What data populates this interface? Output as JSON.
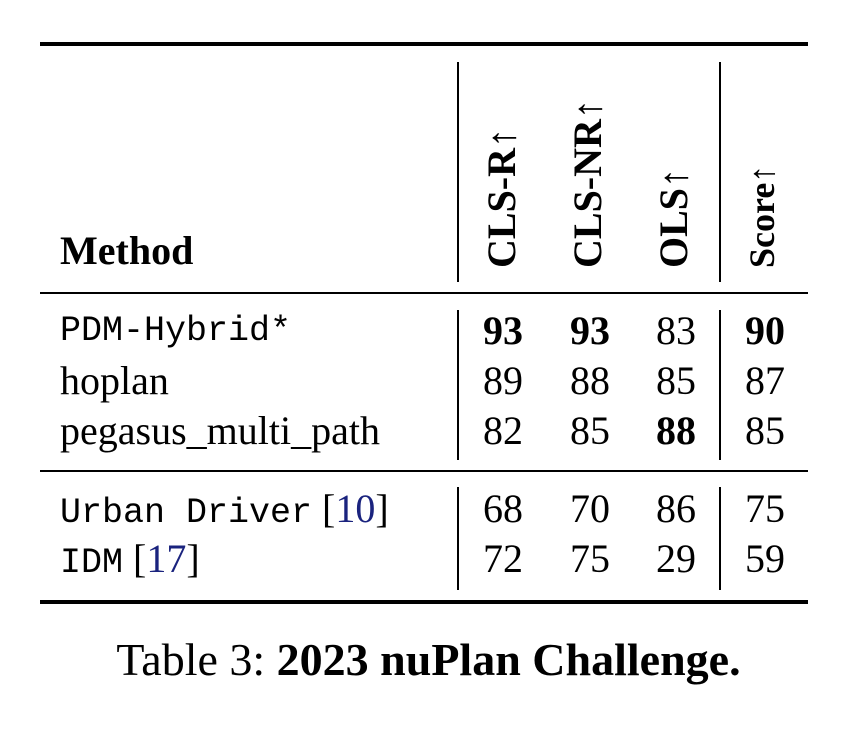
{
  "table": {
    "headers": {
      "method": "Method",
      "cls_r": "CLS-R",
      "cls_nr": "CLS-NR",
      "ols": "OLS",
      "score": "Score",
      "arrow": "↑"
    },
    "group1": [
      {
        "method": "PDM-Hybrid*",
        "cls_r": "93",
        "cls_nr": "93",
        "ols": "83",
        "score": "90"
      },
      {
        "method": "hoplan",
        "cls_r": "89",
        "cls_nr": "88",
        "ols": "85",
        "score": "87"
      },
      {
        "method": "pegasus_multi_path",
        "cls_r": "82",
        "cls_nr": "85",
        "ols": "88",
        "score": "85"
      }
    ],
    "group2": [
      {
        "method": "Urban Driver",
        "ref": "10",
        "cls_r": "68",
        "cls_nr": "70",
        "ols": "86",
        "score": "75"
      },
      {
        "method": "IDM",
        "ref": "17",
        "cls_r": "72",
        "cls_nr": "75",
        "ols": "29",
        "score": "59"
      }
    ]
  },
  "caption": {
    "prefix": "Table 3: ",
    "title": "2023 nuPlan Challenge."
  }
}
